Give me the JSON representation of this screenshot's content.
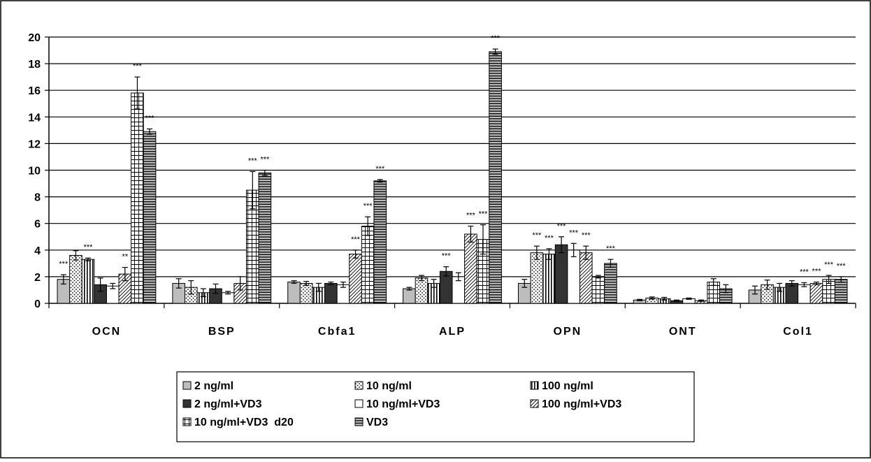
{
  "chart_data": {
    "type": "bar",
    "title": "",
    "xlabel": "",
    "ylabel": "",
    "ylim": [
      0,
      20
    ],
    "yticks": [
      "0",
      "2",
      "4",
      "6",
      "8",
      "10",
      "12",
      "14",
      "16",
      "18",
      "20"
    ],
    "grid": "horizontal",
    "legend_position": "bottom",
    "categories": [
      "OCN",
      "BSP",
      "Cbfa1",
      "ALP",
      "OPN",
      "ONT",
      "Col1"
    ],
    "series": [
      {
        "name": "2 ng/ml",
        "pattern": "solid-gray",
        "values": [
          1.8,
          1.5,
          1.6,
          1.1,
          1.5,
          0.25,
          1.0
        ],
        "errors": [
          0.35,
          0.35,
          0.1,
          0.1,
          0.3,
          0.05,
          0.3
        ],
        "sig": [
          "***",
          "",
          "",
          "",
          "",
          "",
          ""
        ]
      },
      {
        "name": "10 ng/ml",
        "pattern": "dots",
        "values": [
          3.6,
          1.2,
          1.5,
          1.9,
          3.8,
          0.4,
          1.4
        ],
        "errors": [
          0.35,
          0.5,
          0.15,
          0.2,
          0.5,
          0.08,
          0.35
        ],
        "sig": [
          "",
          "",
          "",
          "",
          "***",
          "",
          ""
        ]
      },
      {
        "name": "100 ng/ml",
        "pattern": "vertical-lines",
        "values": [
          3.3,
          0.8,
          1.2,
          1.5,
          3.7,
          0.35,
          1.2
        ],
        "errors": [
          0.1,
          0.3,
          0.3,
          0.3,
          0.4,
          0.1,
          0.3
        ],
        "sig": [
          "***",
          "",
          "",
          "",
          "***",
          "",
          ""
        ]
      },
      {
        "name": "2 ng/ml+VD3",
        "pattern": "solid-dark",
        "values": [
          1.4,
          1.1,
          1.5,
          2.4,
          4.4,
          0.2,
          1.5
        ],
        "errors": [
          0.5,
          0.35,
          0.1,
          0.35,
          0.6,
          0.05,
          0.2
        ],
        "sig": [
          "",
          "",
          "",
          "***",
          "***",
          "",
          ""
        ]
      },
      {
        "name": "10 ng/ml+VD3",
        "pattern": "white",
        "values": [
          1.3,
          0.8,
          1.4,
          2.0,
          4.0,
          0.35,
          1.4
        ],
        "errors": [
          0.2,
          0.1,
          0.2,
          0.3,
          0.5,
          0.05,
          0.15
        ],
        "sig": [
          "",
          "",
          "",
          "",
          "***",
          "",
          "***"
        ]
      },
      {
        "name": "100 ng/ml+VD3",
        "pattern": "diagonal",
        "values": [
          2.2,
          1.5,
          3.7,
          5.2,
          3.8,
          0.2,
          1.5
        ],
        "errors": [
          0.5,
          0.5,
          0.3,
          0.6,
          0.5,
          0.05,
          0.1
        ],
        "sig": [
          "**",
          "",
          "***",
          "***",
          "***",
          "",
          "***"
        ]
      },
      {
        "name": "10 ng/ml+VD3  d20",
        "pattern": "grid",
        "values": [
          15.8,
          8.5,
          5.8,
          4.8,
          2.0,
          1.6,
          1.8
        ],
        "errors": [
          1.2,
          1.4,
          0.7,
          1.1,
          0.1,
          0.25,
          0.3
        ],
        "sig": [
          "***",
          "***",
          "***",
          "***",
          "",
          "",
          "***"
        ]
      },
      {
        "name": "VD3",
        "pattern": "horizontal-lines",
        "values": [
          12.9,
          9.8,
          9.2,
          18.9,
          3.0,
          1.1,
          1.8
        ],
        "errors": [
          0.2,
          0.2,
          0.1,
          0.2,
          0.3,
          0.3,
          0.2
        ],
        "sig": [
          "***",
          "***",
          "***",
          "***",
          "***",
          "",
          "***"
        ]
      }
    ]
  }
}
